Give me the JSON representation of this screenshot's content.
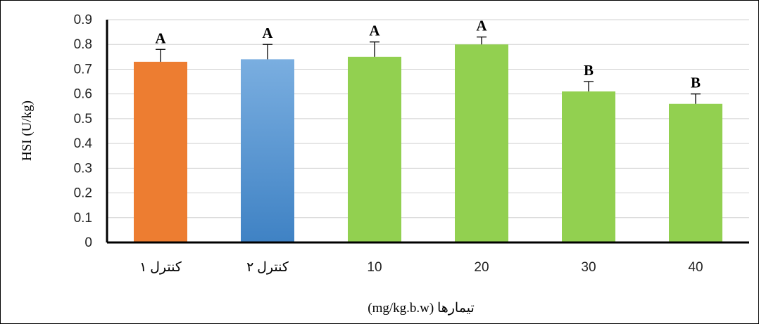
{
  "chart_data": {
    "type": "bar",
    "title": "",
    "ylabel": "HSI (U/kg)",
    "xlabel": "تیمارها  (mg/kg.b.w)",
    "categories": [
      "کنترل ۱",
      "کنترل ۲",
      "10",
      "20",
      "30",
      "40"
    ],
    "values": [
      0.73,
      0.74,
      0.75,
      0.8,
      0.61,
      0.56
    ],
    "error_plus": [
      0.05,
      0.06,
      0.06,
      0.03,
      0.04,
      0.04
    ],
    "significance": [
      "A",
      "A",
      "A",
      "A",
      "B",
      "B"
    ],
    "ylim": [
      0,
      0.9
    ],
    "yticks": [
      "0",
      "0.1",
      "0.2",
      "0.3",
      "0.4",
      "0.5",
      "0.6",
      "0.7",
      "0.8",
      "0.9"
    ],
    "grid": true,
    "bar_colors": [
      "#ed7d31",
      "#5b9bd5",
      "#92d050",
      "#92d050",
      "#92d050",
      "#92d050"
    ]
  }
}
